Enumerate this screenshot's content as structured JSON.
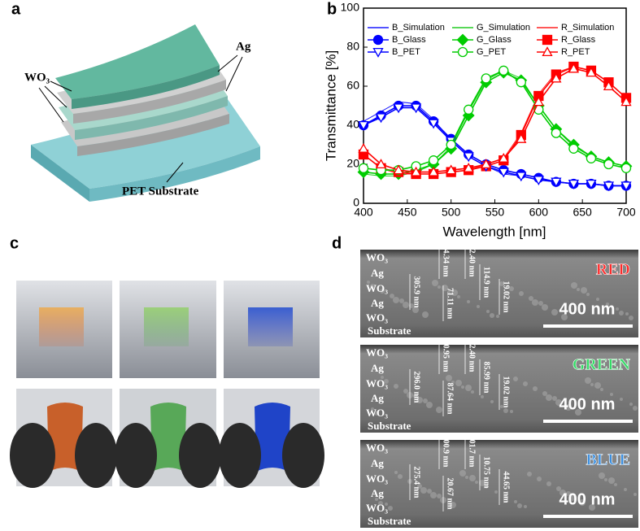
{
  "panel_a": {
    "label": "a",
    "ag": "Ag",
    "wo3": "WO₃",
    "substrate": "PET Substrate"
  },
  "panel_b": {
    "label": "b",
    "chart_data": {
      "type": "line",
      "x_label": "Wavelength [nm]",
      "y_label": "Transmittance [%]",
      "x": [
        400,
        420,
        440,
        460,
        480,
        500,
        520,
        540,
        560,
        580,
        600,
        620,
        640,
        660,
        680,
        700
      ],
      "xlim": [
        400,
        700
      ],
      "xticks": [
        400,
        450,
        500,
        550,
        600,
        650,
        700
      ],
      "ylim": [
        0,
        100
      ],
      "yticks": [
        0,
        20,
        40,
        60,
        80,
        100
      ],
      "series": [
        {
          "name": "B_Simulation",
          "color": "#1a1aff",
          "marker": "none",
          "values": [
            42,
            47,
            52,
            51,
            43,
            32,
            24,
            19,
            15,
            14,
            12,
            11,
            10,
            10,
            9,
            9
          ]
        },
        {
          "name": "G_Simulation",
          "color": "#22cc22",
          "marker": "none",
          "values": [
            15,
            14,
            14,
            16,
            20,
            29,
            47,
            63,
            68,
            64,
            50,
            38,
            29,
            24,
            21,
            19
          ]
        },
        {
          "name": "R_Simulation",
          "color": "#ff2020",
          "marker": "none",
          "values": [
            25,
            18,
            15,
            15,
            15,
            16,
            17,
            20,
            23,
            36,
            56,
            67,
            70,
            68,
            62,
            54
          ]
        },
        {
          "name": "B_Glass",
          "color": "#0000ff",
          "marker": "circle",
          "filled": true,
          "values": [
            40,
            45,
            50,
            50,
            42,
            33,
            25,
            20,
            17,
            15,
            13,
            11,
            10,
            10,
            9,
            9
          ]
        },
        {
          "name": "G_Glass",
          "color": "#00cc00",
          "marker": "diamond",
          "filled": true,
          "values": [
            16,
            15,
            15,
            17,
            20,
            28,
            45,
            62,
            67,
            63,
            50,
            38,
            30,
            24,
            21,
            19
          ]
        },
        {
          "name": "R_Glass",
          "color": "#ff0000",
          "marker": "square",
          "filled": true,
          "values": [
            25,
            18,
            16,
            15,
            15,
            16,
            17,
            19,
            22,
            35,
            55,
            66,
            70,
            68,
            62,
            54
          ]
        },
        {
          "name": "B_PET",
          "color": "#0000ff",
          "marker": "triangle-down",
          "filled": false,
          "values": [
            40,
            44,
            49,
            49,
            41,
            32,
            24,
            19,
            16,
            14,
            12,
            11,
            10,
            10,
            9,
            9
          ]
        },
        {
          "name": "G_PET",
          "color": "#00cc00",
          "marker": "circle",
          "filled": false,
          "values": [
            18,
            17,
            17,
            19,
            22,
            30,
            48,
            64,
            68,
            62,
            48,
            36,
            28,
            23,
            20,
            18
          ]
        },
        {
          "name": "R_PET",
          "color": "#ff0000",
          "marker": "triangle-up",
          "filled": false,
          "values": [
            28,
            20,
            17,
            16,
            16,
            17,
            18,
            20,
            23,
            33,
            52,
            64,
            69,
            67,
            60,
            52
          ]
        }
      ]
    }
  },
  "panel_c": {
    "label": "c"
  },
  "panel_d": {
    "label": "d",
    "images": [
      {
        "title": "RED",
        "color": "#ff2a2a",
        "scale": "400 nm",
        "layers": [
          "WO₃",
          "Ag",
          "WO₃",
          "Ag",
          "WO₃",
          "Substrate"
        ],
        "measures": [
          "305.9 nm",
          "84.34 nm",
          "12.40 nm",
          "114.9 nm",
          "19.02 nm",
          "71.11 nm"
        ]
      },
      {
        "title": "GREEN",
        "color": "#33dd66",
        "scale": "400 nm",
        "layers": [
          "WO₃",
          "Ag",
          "WO₃",
          "Ag",
          "WO₃",
          "Substrate"
        ],
        "measures": [
          "296.0 nm",
          "90.95 nm",
          "12.40 nm",
          "85.99 nm",
          "19.02 nm",
          "87.64 nm"
        ]
      },
      {
        "title": "BLUE",
        "color": "#3b8fe0",
        "scale": "400 nm",
        "layers": [
          "WO₃",
          "Ag",
          "WO₃",
          "Ag",
          "WO₃",
          "Substrate"
        ],
        "measures": [
          "275.4 nm",
          "100.9 nm",
          "101.7 nm",
          "10.75 nm",
          "44.65 nm",
          "20.67 nm"
        ]
      }
    ]
  }
}
